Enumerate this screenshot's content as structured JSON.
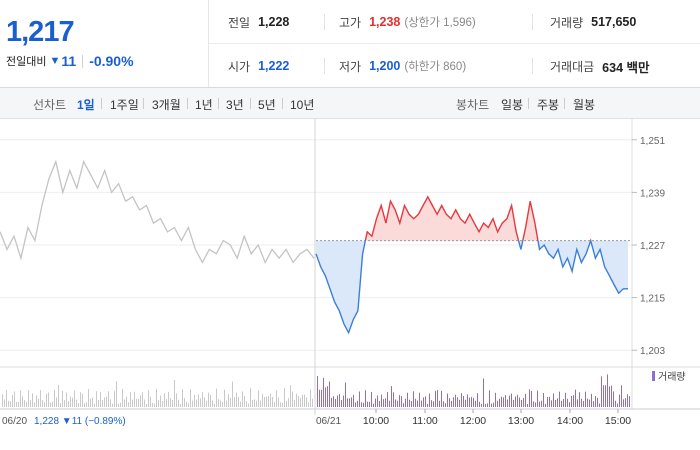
{
  "summary": {
    "price": "1,217",
    "change_label": "전일대비",
    "change_amount": "11",
    "change_pct": "-0.90%"
  },
  "stats": {
    "prev_close": {
      "label": "전일",
      "value": "1,228"
    },
    "high": {
      "label": "고가",
      "value": "1,238",
      "note": "(상한가 1,596)"
    },
    "volume": {
      "label": "거래량",
      "value": "517,650"
    },
    "open": {
      "label": "시가",
      "value": "1,222"
    },
    "low": {
      "label": "저가",
      "value": "1,200",
      "note": "(하한가 860)"
    },
    "amount": {
      "label": "거래대금",
      "value": "634 백만"
    }
  },
  "toolbar": {
    "line_label": "선차트",
    "ranges": [
      "1일",
      "1주일",
      "3개월",
      "1년",
      "3년",
      "5년",
      "10년"
    ],
    "active_range": "1일",
    "candle_label": "봉차트",
    "candle_ranges": [
      "일봉",
      "주봉",
      "월봉"
    ]
  },
  "chart_data": {
    "type": "line",
    "y_ticks": [
      "1,251",
      "1,239",
      "1,227",
      "1,215",
      "1,203"
    ],
    "y_tick_values": [
      1251,
      1239,
      1227,
      1215,
      1203
    ],
    "ylim": [
      1201,
      1253
    ],
    "baseline": 1228,
    "prev_day_label": "06/20",
    "prev_day_info": "1,228 ▼11 (−0.89%)",
    "day_label": "06/21",
    "x_ticks": [
      "10:00",
      "11:00",
      "12:00",
      "13:00",
      "14:00",
      "15:00"
    ],
    "volume_legend": "거래량",
    "colors": {
      "up": "#e8383d",
      "down": "#3b7fd9",
      "prev": "#c4c4c4",
      "volume": "#8a6fd0",
      "prev_volume": "#c9c9c9"
    },
    "prev_series": [
      1230,
      1226,
      1229,
      1224,
      1231,
      1228,
      1236,
      1242,
      1246,
      1239,
      1244,
      1240,
      1246,
      1243,
      1240,
      1244,
      1239,
      1241,
      1237,
      1238,
      1235,
      1236,
      1232,
      1233,
      1230,
      1231,
      1228,
      1231,
      1226,
      1223,
      1226,
      1225,
      1228,
      1227,
      1224,
      1229,
      1225,
      1227,
      1223,
      1226,
      1224,
      1226,
      1223,
      1225,
      1226,
      1224
    ],
    "day_series": [
      1225,
      1222,
      1220,
      1217,
      1214,
      1212,
      1209,
      1207,
      1210,
      1212,
      1225,
      1230,
      1229,
      1233,
      1236,
      1232,
      1237,
      1235,
      1232,
      1236,
      1234,
      1233,
      1234,
      1236,
      1238,
      1236,
      1234,
      1236,
      1234,
      1233,
      1235,
      1233,
      1232,
      1234,
      1232,
      1230,
      1232,
      1231,
      1233,
      1230,
      1232,
      1233,
      1236,
      1230,
      1226,
      1231,
      1237,
      1232,
      1226,
      1227,
      1225,
      1224,
      1226,
      1222,
      1224,
      1221,
      1226,
      1223,
      1225,
      1228,
      1224,
      1226,
      1222,
      1220,
      1218,
      1216,
      1217,
      1217
    ]
  }
}
